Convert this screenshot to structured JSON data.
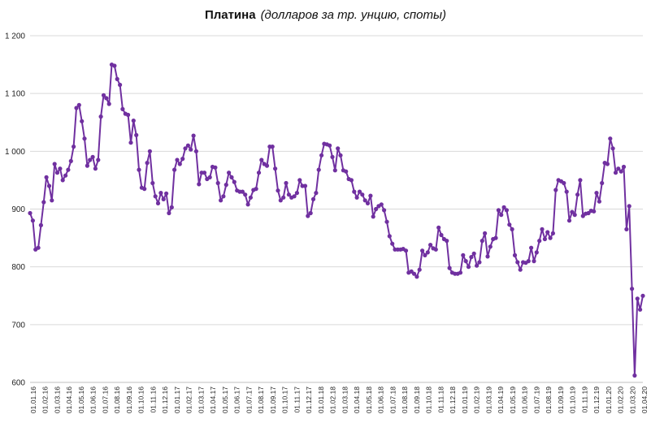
{
  "chart_data": {
    "type": "line",
    "title": "Платина",
    "subtitle": "(долларов за тр. унцию, споты)",
    "xlabel": "",
    "ylabel": "",
    "ylim": [
      600,
      1200
    ],
    "yticks": [
      "600",
      "700",
      "800",
      "900",
      "1 000",
      "1 100",
      "1 200"
    ],
    "ytick_values": [
      600,
      700,
      800,
      900,
      1000,
      1100,
      1200
    ],
    "xticks": [
      "01.01.16",
      "01.02.16",
      "01.03.16",
      "01.04.16",
      "01.05.16",
      "01.06.16",
      "01.07.16",
      "01.08.16",
      "01.09.16",
      "01.10.16",
      "01.11.16",
      "01.12.16",
      "01.01.17",
      "01.02.17",
      "01.03.17",
      "01.04.17",
      "01.05.17",
      "01.06.17",
      "01.07.17",
      "01.08.17",
      "01.09.17",
      "01.10.17",
      "01.11.17",
      "01.12.17",
      "01.01.18",
      "01.02.18",
      "01.03.18",
      "01.04.18",
      "01.05.18",
      "01.06.18",
      "01.07.18",
      "01.08.18",
      "01.09.18",
      "01.10.18",
      "01.11.18",
      "01.12.18",
      "01.01.19",
      "01.02.19",
      "01.03.19",
      "01.04.19",
      "01.05.19",
      "01.06.19",
      "01.07.19",
      "01.08.19",
      "01.09.19",
      "01.10.19",
      "01.11.19",
      "01.12.19",
      "01.01.20",
      "01.02.20",
      "01.03.20",
      "01.04.20"
    ],
    "grid": "horizontal",
    "color": "#7030a0",
    "series": [
      {
        "values": [
          893,
          880,
          830,
          833,
          872,
          912,
          955,
          940,
          915,
          978,
          963,
          970,
          950,
          958,
          968,
          983,
          1008,
          1075,
          1080,
          1052,
          1022,
          975,
          985,
          990,
          970,
          985,
          1060,
          1097,
          1092,
          1082,
          1150,
          1148,
          1125,
          1115,
          1073,
          1065,
          1063,
          1015,
          1053,
          1028,
          968,
          937,
          935,
          980,
          1000,
          945,
          922,
          910,
          928,
          917,
          927,
          893,
          903,
          968,
          985,
          978,
          987,
          1005,
          1010,
          1003,
          1027,
          1000,
          943,
          963,
          963,
          952,
          955,
          973,
          972,
          945,
          915,
          922,
          942,
          963,
          955,
          947,
          932,
          930,
          930,
          925,
          908,
          920,
          933,
          935,
          963,
          985,
          978,
          975,
          1008,
          1008,
          970,
          932,
          915,
          920,
          945,
          925,
          920,
          922,
          928,
          950,
          940,
          940,
          888,
          893,
          917,
          928,
          968,
          993,
          1013,
          1012,
          1010,
          990,
          967,
          1005,
          993,
          967,
          965,
          952,
          950,
          930,
          920,
          930,
          925,
          915,
          910,
          923,
          887,
          900,
          905,
          908,
          898,
          878,
          853,
          840,
          830,
          830,
          830,
          831,
          828,
          790,
          792,
          788,
          783,
          795,
          828,
          820,
          825,
          838,
          832,
          830,
          868,
          855,
          848,
          845,
          798,
          790,
          788,
          788,
          790,
          820,
          810,
          800,
          817,
          823,
          802,
          808,
          845,
          858,
          818,
          835,
          848,
          850,
          898,
          890,
          903,
          898,
          873,
          865,
          820,
          808,
          795,
          808,
          807,
          810,
          833,
          810,
          825,
          845,
          865,
          848,
          860,
          850,
          858,
          933,
          950,
          948,
          945,
          930,
          880,
          895,
          890,
          925,
          950,
          888,
          892,
          893,
          897,
          896,
          928,
          913,
          945,
          980,
          978,
          1022,
          1005,
          963,
          970,
          965,
          973,
          865,
          905,
          762,
          612,
          745,
          726,
          750
        ]
      }
    ]
  }
}
